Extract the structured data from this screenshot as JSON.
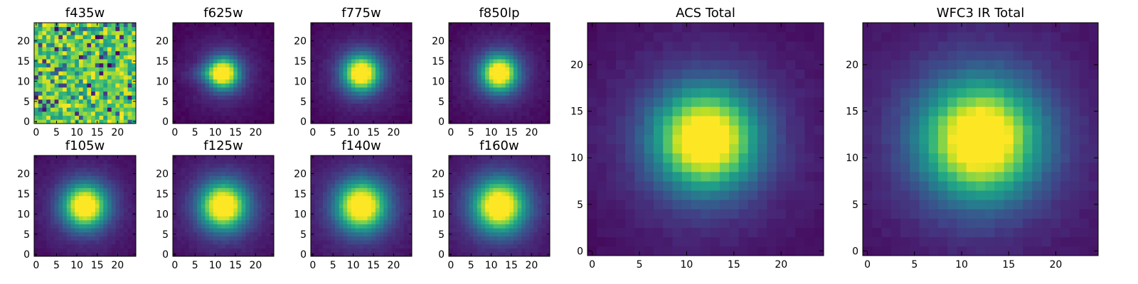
{
  "chart_data": {
    "type": "heatmap",
    "colormap": "viridis",
    "grid": false,
    "panels": [
      {
        "title": "f435w",
        "xlim": [
          -0.5,
          24.5
        ],
        "ylim": [
          -0.5,
          24.5
        ],
        "xticks": [
          0,
          5,
          10,
          15,
          20
        ],
        "yticks": [
          0,
          5,
          10,
          15,
          20
        ],
        "center": [
          12,
          12
        ],
        "sigma": null,
        "values": "noise"
      },
      {
        "title": "f625w",
        "xlim": [
          -0.5,
          24.5
        ],
        "ylim": [
          -0.5,
          24.5
        ],
        "xticks": [
          0,
          5,
          10,
          15,
          20
        ],
        "yticks": [
          0,
          5,
          10,
          15,
          20
        ],
        "center": [
          12,
          12
        ],
        "sigma": 2.6,
        "values": "gaussian"
      },
      {
        "title": "f775w",
        "xlim": [
          -0.5,
          24.5
        ],
        "ylim": [
          -0.5,
          24.5
        ],
        "xticks": [
          0,
          5,
          10,
          15,
          20
        ],
        "yticks": [
          0,
          5,
          10,
          15,
          20
        ],
        "center": [
          12,
          12
        ],
        "sigma": 3.0,
        "values": "gaussian"
      },
      {
        "title": "f850lp",
        "xlim": [
          -0.5,
          24.5
        ],
        "ylim": [
          -0.5,
          24.5
        ],
        "xticks": [
          0,
          5,
          10,
          15,
          20
        ],
        "yticks": [
          0,
          5,
          10,
          15,
          20
        ],
        "center": [
          12,
          12
        ],
        "sigma": 3.0,
        "values": "gaussian"
      },
      {
        "title": "ACS Total",
        "xlim": [
          -0.5,
          24.5
        ],
        "ylim": [
          -0.5,
          24.5
        ],
        "xticks": [
          0,
          5,
          10,
          15,
          20
        ],
        "yticks": [
          0,
          5,
          10,
          15,
          20
        ],
        "center": [
          12,
          12
        ],
        "sigma": 3.6,
        "values": "gaussian"
      },
      {
        "title": "WFC3 IR Total",
        "xlim": [
          -0.5,
          24.5
        ],
        "ylim": [
          -0.5,
          24.5
        ],
        "xticks": [
          0,
          5,
          10,
          15,
          20
        ],
        "yticks": [
          0,
          5,
          10,
          15,
          20
        ],
        "center": [
          12,
          12
        ],
        "sigma": 4.2,
        "values": "gaussian"
      },
      {
        "title": "f105w",
        "xlim": [
          -0.5,
          24.5
        ],
        "ylim": [
          -0.5,
          24.5
        ],
        "xticks": [
          0,
          5,
          10,
          15,
          20
        ],
        "yticks": [
          0,
          5,
          10,
          15,
          20
        ],
        "center": [
          12,
          12
        ],
        "sigma": 3.6,
        "values": "gaussian"
      },
      {
        "title": "f125w",
        "xlim": [
          -0.5,
          24.5
        ],
        "ylim": [
          -0.5,
          24.5
        ],
        "xticks": [
          0,
          5,
          10,
          15,
          20
        ],
        "yticks": [
          0,
          5,
          10,
          15,
          20
        ],
        "center": [
          12,
          12
        ],
        "sigma": 3.9,
        "values": "gaussian"
      },
      {
        "title": "f140w",
        "xlim": [
          -0.5,
          24.5
        ],
        "ylim": [
          -0.5,
          24.5
        ],
        "xticks": [
          0,
          5,
          10,
          15,
          20
        ],
        "yticks": [
          0,
          5,
          10,
          15,
          20
        ],
        "center": [
          12,
          12
        ],
        "sigma": 4.1,
        "values": "gaussian"
      },
      {
        "title": "f160w",
        "xlim": [
          -0.5,
          24.5
        ],
        "ylim": [
          -0.5,
          24.5
        ],
        "xticks": [
          0,
          5,
          10,
          15,
          20
        ],
        "yticks": [
          0,
          5,
          10,
          15,
          20
        ],
        "center": [
          12,
          12
        ],
        "sigma": 4.3,
        "values": "gaussian"
      }
    ]
  }
}
